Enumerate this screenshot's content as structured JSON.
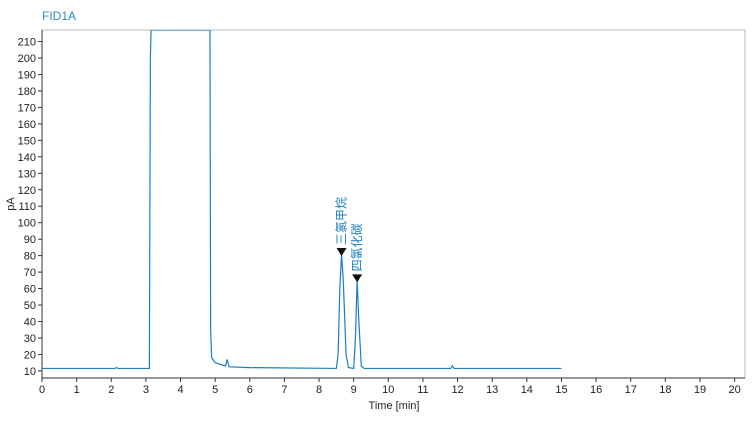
{
  "chart_data": {
    "type": "line",
    "title": "FID1A",
    "x_label": "Time [min]",
    "y_label": "pA",
    "x": [
      0,
      2.1,
      2.15,
      2.2,
      3.1,
      3.13,
      3.15,
      4.85,
      4.87,
      4.9,
      5.0,
      5.3,
      5.35,
      5.4,
      6,
      8.5,
      8.55,
      8.6,
      8.65,
      8.7,
      8.78,
      8.85,
      9.0,
      9.05,
      9.1,
      9.15,
      9.22,
      9.3,
      11.8,
      11.85,
      11.9,
      15
    ],
    "values": [
      11.5,
      11.5,
      12,
      11.5,
      11.5,
      200,
      217,
      217,
      35,
      18,
      15,
      13,
      17,
      12.5,
      12,
      11.5,
      20,
      60,
      81,
      65,
      20,
      12,
      11.5,
      30,
      65,
      40,
      13,
      11.5,
      11.5,
      13,
      11.5,
      11.5
    ],
    "color": "#1a7fc1",
    "annotations": [
      {
        "text": "三氯甲烷",
        "x": 8.65,
        "y": 81
      },
      {
        "text": "四氯化碳",
        "x": 9.1,
        "y": 65
      }
    ],
    "xlim": [
      0,
      20.3
    ],
    "xticks": [
      0,
      1,
      2,
      3,
      4,
      5,
      6,
      7,
      8,
      9,
      10,
      11,
      12,
      13,
      14,
      15,
      16,
      17,
      18,
      19,
      20
    ],
    "ylim": [
      5.7,
      217
    ],
    "yticks": [
      10,
      20,
      30,
      40,
      50,
      60,
      70,
      80,
      90,
      100,
      110,
      120,
      130,
      140,
      150,
      160,
      170,
      180,
      190,
      200,
      210
    ]
  }
}
